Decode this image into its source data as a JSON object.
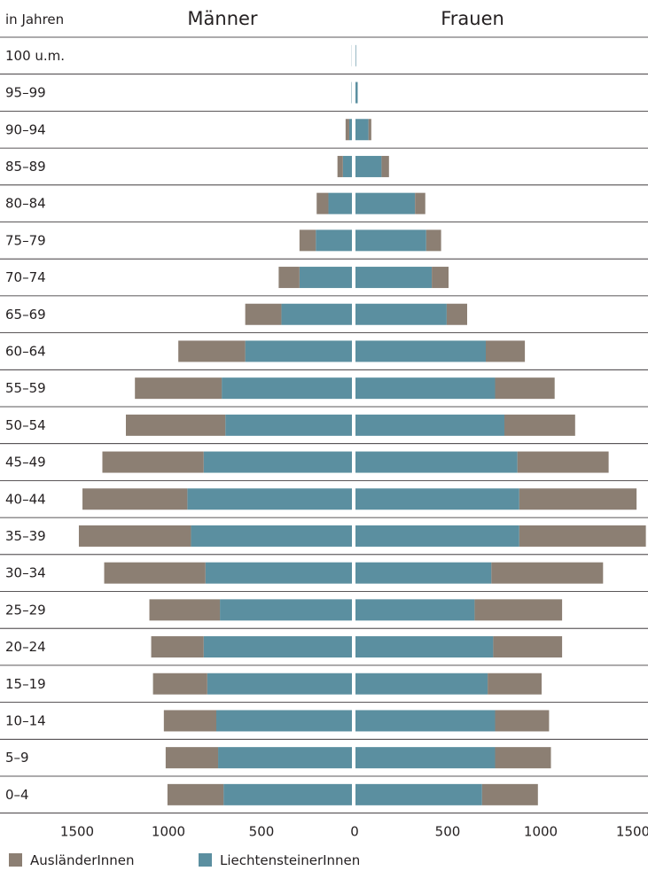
{
  "chart_data": {
    "type": "bar",
    "orientation": "horizontal",
    "stacked": true,
    "ylabel": "in Jahren",
    "left_title": "Männer",
    "right_title": "Frauen",
    "categories": [
      "100 u.m.",
      "95–99",
      "90–94",
      "85–89",
      "80–84",
      "75–79",
      "70–74",
      "65–69",
      "60–64",
      "55–59",
      "50–54",
      "45–49",
      "40–44",
      "35–39",
      "30–34",
      "25–29",
      "20–24",
      "15–19",
      "10–14",
      "5–9",
      "0–4"
    ],
    "xlim": [
      0,
      1500
    ],
    "xticks": [
      "1500",
      "1000",
      "500",
      "0",
      "500",
      "1000",
      "1500"
    ],
    "grid": false,
    "legend_position": "bottom-left",
    "series": [
      {
        "name": "LiechtensteinerInnen",
        "color": "#5b8fa0",
        "men": [
          1,
          2,
          15,
          50,
          130,
          200,
          290,
          390,
          590,
          720,
          700,
          820,
          910,
          890,
          810,
          730,
          820,
          800,
          750,
          740,
          710
        ],
        "women": [
          3,
          12,
          70,
          140,
          320,
          380,
          410,
          490,
          700,
          750,
          800,
          870,
          880,
          880,
          730,
          640,
          740,
          710,
          750,
          750,
          680
        ]
      },
      {
        "name": "AusländerInnen",
        "color": "#8c7f73",
        "men": [
          0,
          0,
          20,
          30,
          65,
          90,
          115,
          200,
          370,
          480,
          550,
          560,
          580,
          620,
          560,
          390,
          290,
          300,
          290,
          290,
          310
        ],
        "women": [
          0,
          0,
          15,
          40,
          55,
          80,
          90,
          110,
          210,
          320,
          380,
          490,
          630,
          680,
          600,
          470,
          370,
          290,
          290,
          300,
          300
        ]
      }
    ]
  }
}
